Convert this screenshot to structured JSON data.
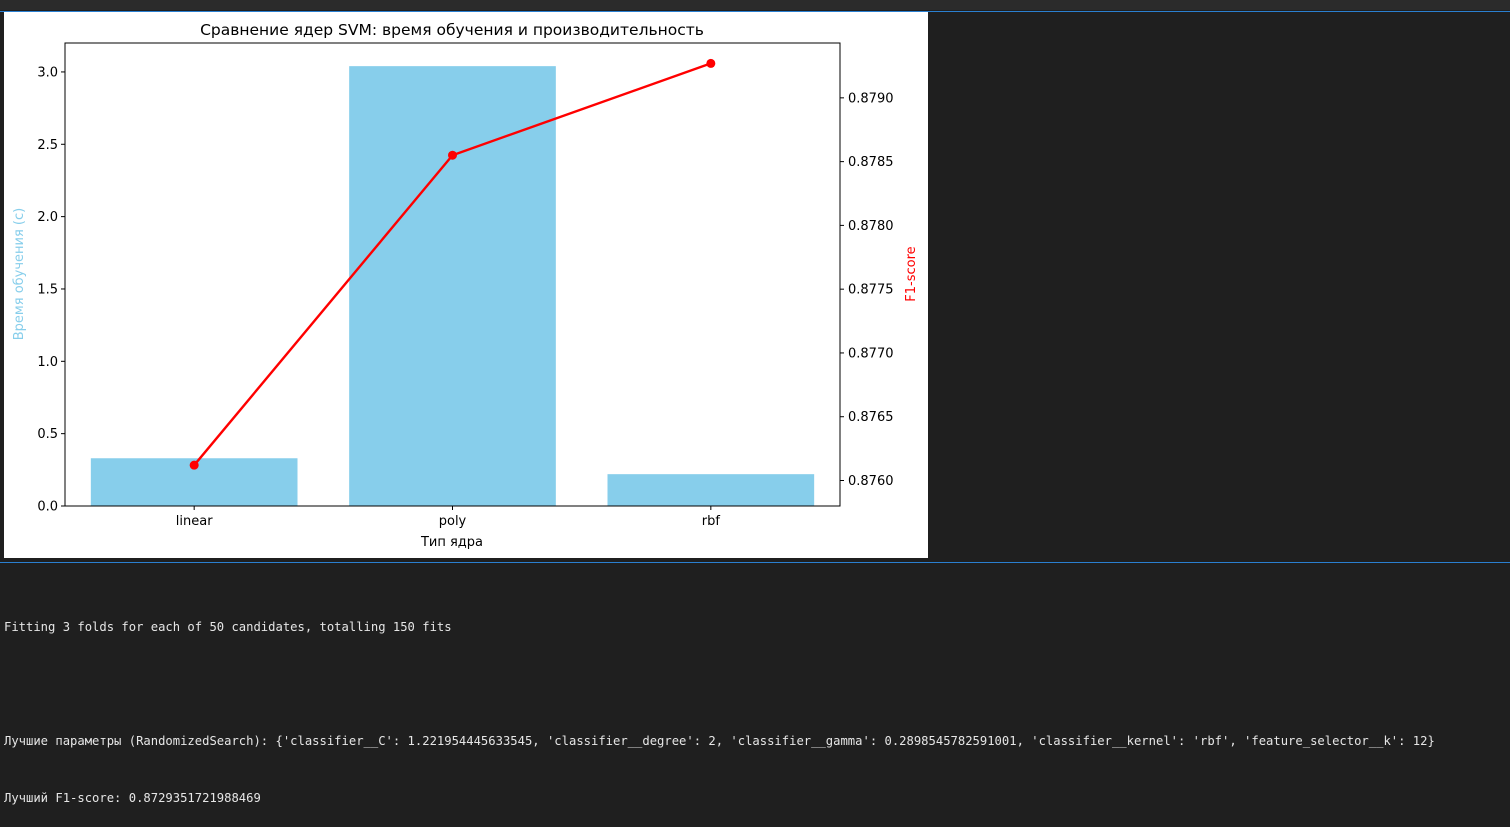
{
  "chart_data": {
    "type": "bar",
    "title": "Сравнение ядер SVM: время обучения и производительность",
    "xlabel": "Тип ядра",
    "ylabel": "Время обучения (с)",
    "ylabel_right": "F1-score",
    "categories": [
      "linear",
      "poly",
      "rbf"
    ],
    "series": [
      {
        "values": [
          0.33,
          3.04,
          0.22
        ],
        "color": "#87ceeb",
        "kind": "bar",
        "axis": "left"
      },
      {
        "values": [
          0.87612,
          0.87855,
          0.87927
        ],
        "color": "#ff0000",
        "kind": "line",
        "axis": "right",
        "marker": "circle"
      }
    ],
    "ylim": [
      0,
      3.2
    ],
    "ylim_right": [
      0.8758,
      0.87943
    ],
    "yticks": [
      "0.0",
      "0.5",
      "1.0",
      "1.5",
      "2.0",
      "2.5",
      "3.0"
    ],
    "yticks_right": [
      "0.8760",
      "0.8765",
      "0.8770",
      "0.8775",
      "0.8780",
      "0.8785",
      "0.8790"
    ],
    "grid": false
  },
  "console": {
    "line1": "Fitting 3 folds for each of 50 candidates, totalling 150 fits",
    "line2": "Лучшие параметры (RandomizedSearch): {'classifier__C': 1.221954445633545, 'classifier__degree': 2, 'classifier__gamma': 0.2898545782591001, 'classifier__kernel': 'rbf', 'feature_selector__k': 12}",
    "line3": "Лучший F1-score: 0.8729351721988469"
  },
  "colors": {
    "background": "#1f1f1f",
    "divider": "#2a7fd0",
    "bar": "#87ceeb",
    "line": "#ff0000"
  }
}
